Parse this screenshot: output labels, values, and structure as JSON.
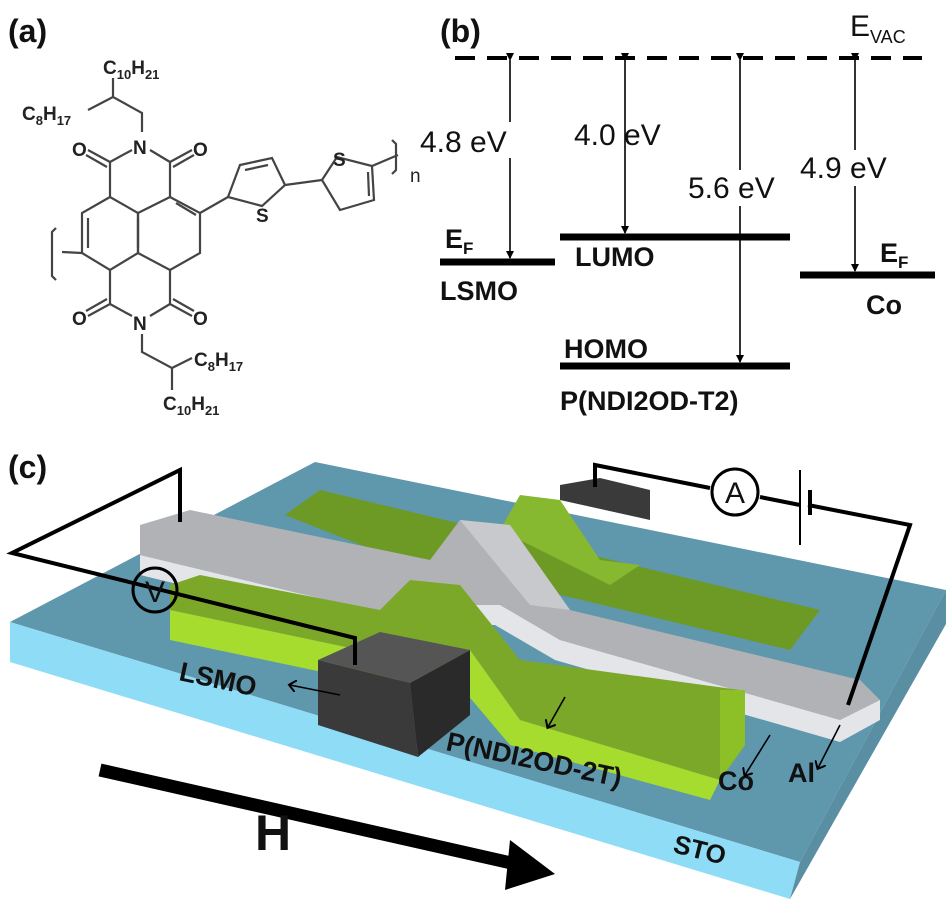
{
  "panels": {
    "a": {
      "label": "(a)"
    },
    "b": {
      "label": "(b)"
    },
    "c": {
      "label": "(c)"
    }
  },
  "molecule": {
    "top_c10": {
      "c": "C",
      "n1": "10",
      "h": "H",
      "n2": "21"
    },
    "top_c8": {
      "c": "C",
      "n1": "8",
      "h": "H",
      "n2": "17"
    },
    "bot_c8": {
      "c": "C",
      "n1": "8",
      "h": "H",
      "n2": "17"
    },
    "bot_c10": {
      "c": "C",
      "n1": "10",
      "h": "H",
      "n2": "21"
    },
    "atoms": {
      "n_top": "N",
      "n_bot": "N",
      "o1": "O",
      "o2": "O",
      "o3": "O",
      "o4": "O",
      "s1": "S",
      "s2": "S"
    },
    "repeat": "n"
  },
  "energy_diagram": {
    "vacuum": {
      "main": "E",
      "sub": "VAC"
    },
    "fermi_left": {
      "main": "E",
      "sub": "F"
    },
    "fermi_right": {
      "main": "E",
      "sub": "F"
    },
    "gaps": [
      "4.8 eV",
      "4.0 eV",
      "5.6 eV",
      "4.9 eV"
    ],
    "levels": {
      "lsmo": "LSMO",
      "lumo": "LUMO",
      "homo": "HOMO",
      "co": "Co",
      "polymer": "P(NDI2OD-T2)"
    }
  },
  "device": {
    "voltmeter": "V",
    "ammeter": "A",
    "labels": {
      "lsmo": "LSMO",
      "polymer": "P(NDI2OD-2T)",
      "co": "Co",
      "al": "Al",
      "substrate": "STO",
      "field": "H"
    },
    "colors": {
      "substrate_top": "#5f97ad",
      "substrate_side": "#8fdcf7",
      "polymer": "#7ca82a",
      "polymer_light": "#a6dc2e",
      "metal": "#b0b2b6",
      "electrode": "#3a3a3a"
    }
  }
}
